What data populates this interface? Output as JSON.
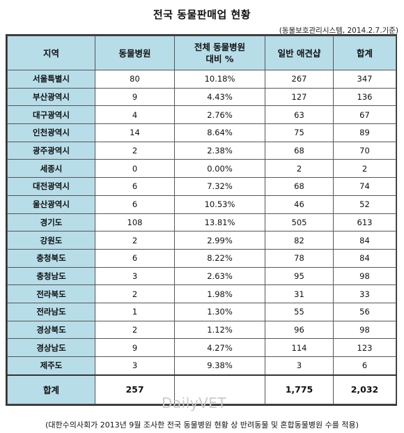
{
  "title": "전국 동물판매업 현황",
  "source": "(동물보호관리시스템, 2014.2.7.기준)",
  "headers": [
    "지역",
    "동물병원",
    "전체 동물병원",
    "대비 %",
    "일반 애견샵",
    "합계"
  ],
  "rows": [
    [
      "서울특별시",
      "80",
      "10.18%",
      "267",
      "347"
    ],
    [
      "부산광역시",
      "9",
      "4.43%",
      "127",
      "136"
    ],
    [
      "대구광역시",
      "4",
      "2.76%",
      "63",
      "67"
    ],
    [
      "인천광역시",
      "14",
      "8.64%",
      "75",
      "89"
    ],
    [
      "광주광역시",
      "2",
      "2.38%",
      "68",
      "70"
    ],
    [
      "세종시",
      "0",
      "0.00%",
      "2",
      "2"
    ],
    [
      "대전광역시",
      "6",
      "7.32%",
      "68",
      "74"
    ],
    [
      "울산광역시",
      "6",
      "10.53%",
      "46",
      "52"
    ],
    [
      "경기도",
      "108",
      "13.81%",
      "505",
      "613"
    ],
    [
      "강원도",
      "2",
      "2.99%",
      "82",
      "84"
    ],
    [
      "충청북도",
      "6",
      "8.22%",
      "78",
      "84"
    ],
    [
      "충청남도",
      "3",
      "2.63%",
      "95",
      "98"
    ],
    [
      "전라북도",
      "2",
      "1.98%",
      "31",
      "33"
    ],
    [
      "전라남도",
      "1",
      "1.30%",
      "55",
      "56"
    ],
    [
      "경상북도",
      "2",
      "1.12%",
      "96",
      "98"
    ],
    [
      "경상남도",
      "9",
      "4.27%",
      "114",
      "123"
    ],
    [
      "제주도",
      "3",
      "9.38%",
      "3",
      "6"
    ]
  ],
  "total": [
    "합계",
    "257",
    "",
    "1,775",
    "2,032"
  ],
  "watermark": "DailyVET",
  "footnote": "(대한수의사회가 2013년 9월 조사한 전국 동물병원 현황 상 반려동물 및 혼합동물병원 수를 적용)"
}
